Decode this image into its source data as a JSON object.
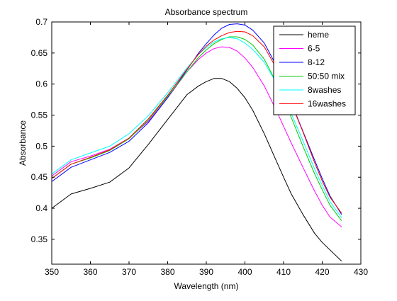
{
  "chart_data": {
    "type": "line",
    "title": "Absorbance spectrum",
    "xlabel": "Wavelength (nm)",
    "ylabel": "Absorbance",
    "xlim": [
      350,
      430
    ],
    "ylim": [
      0.31,
      0.7
    ],
    "xticks": [
      350,
      360,
      370,
      380,
      390,
      400,
      410,
      420,
      430
    ],
    "yticks": [
      0.35,
      0.4,
      0.45,
      0.5,
      0.55,
      0.6,
      0.65,
      0.7
    ],
    "grid": false,
    "legend_position": "top-right",
    "series": [
      {
        "name": "heme",
        "color": "#000000",
        "x": [
          350,
          355,
          360,
          365,
          370,
          375,
          380,
          385,
          388,
          390,
          392,
          394,
          396,
          398,
          400,
          402,
          405,
          408,
          410,
          412,
          415,
          418,
          420,
          422,
          425
        ],
        "y": [
          0.4,
          0.423,
          0.432,
          0.442,
          0.465,
          0.503,
          0.543,
          0.583,
          0.597,
          0.604,
          0.609,
          0.609,
          0.604,
          0.593,
          0.578,
          0.558,
          0.52,
          0.478,
          0.45,
          0.423,
          0.39,
          0.36,
          0.345,
          0.333,
          0.315
        ]
      },
      {
        "name": "6-5",
        "color": "#ff00ff",
        "x": [
          350,
          355,
          360,
          365,
          370,
          375,
          380,
          385,
          388,
          390,
          392,
          394,
          396,
          398,
          400,
          402,
          405,
          408,
          410,
          412,
          415,
          418,
          420,
          422,
          425
        ],
        "y": [
          0.452,
          0.475,
          0.484,
          0.495,
          0.513,
          0.54,
          0.578,
          0.62,
          0.64,
          0.65,
          0.657,
          0.66,
          0.659,
          0.653,
          0.642,
          0.627,
          0.597,
          0.559,
          0.532,
          0.505,
          0.466,
          0.428,
          0.405,
          0.386,
          0.37
        ]
      },
      {
        "name": "8-12",
        "color": "#0000ff",
        "x": [
          350,
          355,
          360,
          365,
          370,
          375,
          380,
          385,
          388,
          390,
          392,
          394,
          396,
          398,
          400,
          402,
          405,
          408,
          410,
          412,
          415,
          418,
          420,
          422,
          425
        ],
        "y": [
          0.443,
          0.466,
          0.478,
          0.49,
          0.508,
          0.538,
          0.578,
          0.623,
          0.65,
          0.665,
          0.679,
          0.69,
          0.696,
          0.697,
          0.695,
          0.687,
          0.666,
          0.631,
          0.603,
          0.57,
          0.524,
          0.478,
          0.448,
          0.42,
          0.39
        ]
      },
      {
        "name": "50:50 mix",
        "color": "#00cc00",
        "x": [
          350,
          355,
          360,
          365,
          370,
          375,
          380,
          385,
          388,
          390,
          392,
          394,
          396,
          398,
          400,
          402,
          405,
          408,
          410,
          412,
          415,
          418,
          420,
          422,
          425
        ],
        "y": [
          0.448,
          0.471,
          0.481,
          0.493,
          0.512,
          0.542,
          0.58,
          0.62,
          0.643,
          0.655,
          0.665,
          0.672,
          0.676,
          0.676,
          0.672,
          0.663,
          0.64,
          0.604,
          0.577,
          0.546,
          0.5,
          0.456,
          0.43,
          0.405,
          0.38
        ]
      },
      {
        "name": "8washes",
        "color": "#00ffff",
        "x": [
          350,
          355,
          360,
          365,
          370,
          375,
          380,
          385,
          388,
          390,
          392,
          394,
          396,
          398,
          400,
          402,
          405,
          408,
          410,
          412,
          415,
          418,
          420,
          422,
          425
        ],
        "y": [
          0.455,
          0.478,
          0.489,
          0.5,
          0.52,
          0.549,
          0.586,
          0.626,
          0.648,
          0.659,
          0.668,
          0.673,
          0.675,
          0.673,
          0.666,
          0.656,
          0.635,
          0.603,
          0.579,
          0.552,
          0.509,
          0.464,
          0.437,
          0.411,
          0.385
        ]
      },
      {
        "name": "16washes",
        "color": "#ff0000",
        "x": [
          350,
          355,
          360,
          365,
          370,
          375,
          380,
          385,
          388,
          390,
          392,
          394,
          396,
          398,
          400,
          402,
          405,
          408,
          410,
          412,
          415,
          418,
          420,
          422,
          425
        ],
        "y": [
          0.448,
          0.471,
          0.482,
          0.494,
          0.513,
          0.544,
          0.582,
          0.624,
          0.648,
          0.661,
          0.671,
          0.678,
          0.683,
          0.685,
          0.684,
          0.678,
          0.66,
          0.627,
          0.6,
          0.569,
          0.523,
          0.474,
          0.444,
          0.418,
          0.392
        ]
      }
    ]
  }
}
